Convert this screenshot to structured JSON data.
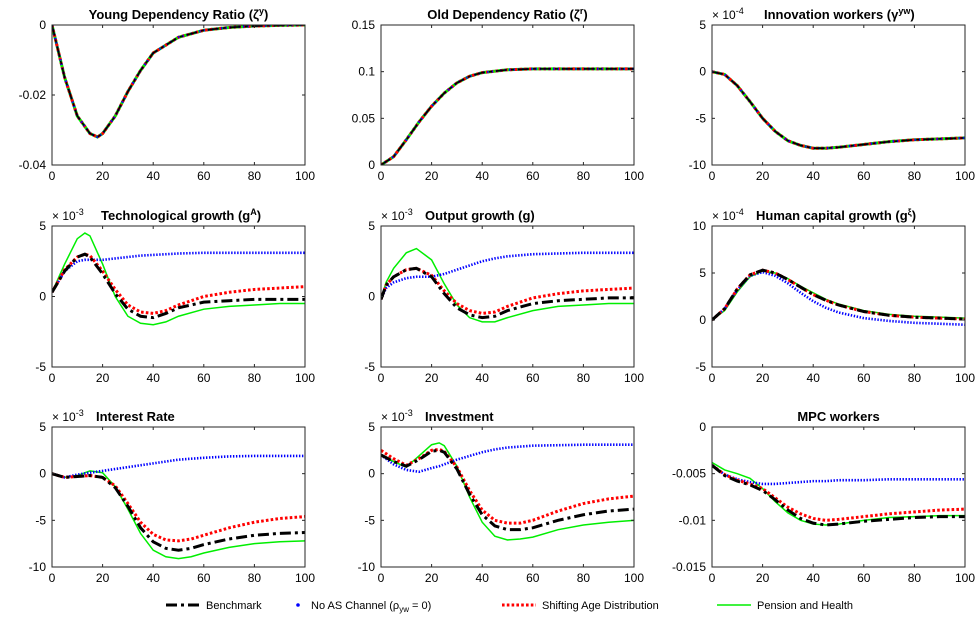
{
  "legend": {
    "items": [
      {
        "key": "bench",
        "label": "Benchmark",
        "color": "#000000",
        "style": "dashdot"
      },
      {
        "key": "noas",
        "label": "No AS Channel (ρ",
        "sub": "yw",
        "suffix": " =  0)",
        "color": "#0000ff",
        "style": "dots"
      },
      {
        "key": "shift",
        "label": "Shifting Age Distribution",
        "color": "#ff0000",
        "style": "dotted"
      },
      {
        "key": "pens",
        "label": "Pension and Health",
        "color": "#00ee00",
        "style": "solid"
      }
    ]
  },
  "chart_data": [
    {
      "type": "line",
      "title": "Young Dependency Ratio (ζ",
      "title_sup": "y",
      "title_end": ")",
      "exponent": "",
      "xlim": [
        0,
        100
      ],
      "ylim": [
        -0.04,
        0
      ],
      "yticks": [
        -0.04,
        -0.02,
        0
      ],
      "ytick_labels": [
        "-0.04",
        "-0.02",
        "0"
      ],
      "xticks": [
        0,
        20,
        40,
        60,
        80,
        100
      ],
      "x": [
        0,
        5,
        10,
        15,
        18,
        20,
        25,
        30,
        35,
        40,
        50,
        60,
        70,
        80,
        90,
        100
      ],
      "series": [
        {
          "key": "all",
          "values": [
            0,
            -0.015,
            -0.026,
            -0.031,
            -0.032,
            -0.031,
            -0.026,
            -0.019,
            -0.013,
            -0.008,
            -0.0035,
            -0.0015,
            -0.0007,
            -0.0003,
            -0.0001,
            0
          ]
        }
      ]
    },
    {
      "type": "line",
      "title": "Old Dependency Ratio (ζ",
      "title_sup": "r",
      "title_end": ")",
      "exponent": "",
      "xlim": [
        0,
        100
      ],
      "ylim": [
        0,
        0.15
      ],
      "yticks": [
        0,
        0.05,
        0.1,
        0.15
      ],
      "ytick_labels": [
        "0",
        "0.05",
        "0.1",
        "0.15"
      ],
      "xticks": [
        0,
        20,
        40,
        60,
        80,
        100
      ],
      "x": [
        0,
        5,
        10,
        15,
        20,
        25,
        30,
        35,
        40,
        50,
        60,
        70,
        80,
        90,
        100
      ],
      "series": [
        {
          "key": "all",
          "values": [
            0,
            0.009,
            0.027,
            0.046,
            0.063,
            0.077,
            0.088,
            0.095,
            0.099,
            0.102,
            0.103,
            0.103,
            0.103,
            0.103,
            0.103
          ]
        }
      ]
    },
    {
      "type": "line",
      "title": "Innovation workers (γ",
      "title_sup": "yw",
      "title_end": ")",
      "exponent": "-4",
      "xlim": [
        0,
        100
      ],
      "ylim": [
        -10,
        5
      ],
      "yticks": [
        -10,
        -5,
        0,
        5
      ],
      "ytick_labels": [
        "-10",
        "-5",
        "0",
        "5"
      ],
      "xticks": [
        0,
        20,
        40,
        60,
        80,
        100
      ],
      "x": [
        0,
        5,
        10,
        15,
        20,
        25,
        30,
        35,
        40,
        45,
        50,
        60,
        70,
        80,
        90,
        100
      ],
      "series": [
        {
          "key": "all",
          "values": [
            0,
            -0.3,
            -1.5,
            -3.2,
            -5,
            -6.4,
            -7.4,
            -7.9,
            -8.2,
            -8.2,
            -8.1,
            -7.8,
            -7.5,
            -7.3,
            -7.2,
            -7.1
          ]
        }
      ]
    },
    {
      "type": "line",
      "title": "Technological growth (g",
      "title_sup": "A",
      "title_end": ")",
      "exponent": "-3",
      "xlim": [
        0,
        100
      ],
      "ylim": [
        -5,
        5
      ],
      "yticks": [
        -5,
        0,
        5
      ],
      "ytick_labels": [
        "-5",
        "0",
        "5"
      ],
      "xticks": [
        0,
        20,
        40,
        60,
        80,
        100
      ],
      "x": [
        0,
        5,
        10,
        13,
        15,
        20,
        25,
        30,
        35,
        40,
        45,
        50,
        60,
        70,
        80,
        90,
        100
      ],
      "series": [
        {
          "key": "bench",
          "values": [
            0.3,
            1.8,
            2.8,
            3.0,
            2.8,
            1.6,
            0.2,
            -0.9,
            -1.4,
            -1.5,
            -1.2,
            -0.8,
            -0.4,
            -0.3,
            -0.2,
            -0.2,
            -0.2
          ]
        },
        {
          "key": "noas",
          "values": [
            0.3,
            1.8,
            2.5,
            2.6,
            2.6,
            2.6,
            2.7,
            2.8,
            2.9,
            2.95,
            3.0,
            3.05,
            3.1,
            3.1,
            3.1,
            3.1,
            3.1
          ]
        },
        {
          "key": "shift",
          "values": [
            0.3,
            1.9,
            2.8,
            3.0,
            2.9,
            1.8,
            0.5,
            -0.6,
            -1.1,
            -1.2,
            -1.0,
            -0.6,
            0,
            0.3,
            0.5,
            0.6,
            0.7
          ]
        },
        {
          "key": "pens",
          "values": [
            0.3,
            2.3,
            4.1,
            4.5,
            4.3,
            2.3,
            0.0,
            -1.4,
            -1.9,
            -2.0,
            -1.8,
            -1.4,
            -0.9,
            -0.7,
            -0.6,
            -0.5,
            -0.5
          ]
        }
      ]
    },
    {
      "type": "line",
      "title": "Output growth (g)",
      "title_sup": "",
      "title_end": "",
      "exponent": "-3",
      "xlim": [
        0,
        100
      ],
      "ylim": [
        -5,
        5
      ],
      "yticks": [
        -5,
        0,
        5
      ],
      "ytick_labels": [
        "-5",
        "0",
        "5"
      ],
      "xticks": [
        0,
        20,
        40,
        60,
        80,
        100
      ],
      "x": [
        0,
        2,
        5,
        10,
        14,
        20,
        25,
        30,
        35,
        40,
        45,
        50,
        60,
        70,
        80,
        90,
        100
      ],
      "series": [
        {
          "key": "bench",
          "values": [
            -0.2,
            0.8,
            1.4,
            1.9,
            2.0,
            1.4,
            0.2,
            -0.8,
            -1.3,
            -1.5,
            -1.4,
            -1.0,
            -0.5,
            -0.3,
            -0.2,
            -0.1,
            -0.1
          ]
        },
        {
          "key": "noas",
          "values": [
            -0.2,
            0.6,
            1.0,
            1.3,
            1.4,
            1.4,
            1.6,
            1.9,
            2.2,
            2.5,
            2.7,
            2.85,
            3.0,
            3.05,
            3.1,
            3.1,
            3.1
          ]
        },
        {
          "key": "shift",
          "values": [
            -0.2,
            0.8,
            1.4,
            1.9,
            2.0,
            1.5,
            0.4,
            -0.5,
            -1.0,
            -1.2,
            -1.1,
            -0.7,
            -0.1,
            0.2,
            0.4,
            0.5,
            0.6
          ]
        },
        {
          "key": "pens",
          "values": [
            -0.2,
            1.0,
            2.0,
            3.1,
            3.4,
            2.6,
            0.9,
            -0.6,
            -1.5,
            -1.8,
            -1.8,
            -1.5,
            -1.0,
            -0.7,
            -0.6,
            -0.5,
            -0.5
          ]
        }
      ]
    },
    {
      "type": "line",
      "title": "Human capital growth (g",
      "title_sup": "ξ",
      "title_end": ")",
      "exponent": "-4",
      "xlim": [
        0,
        100
      ],
      "ylim": [
        -5,
        10
      ],
      "yticks": [
        -5,
        0,
        5,
        10
      ],
      "ytick_labels": [
        "-5",
        "0",
        "5",
        "10"
      ],
      "xticks": [
        0,
        20,
        40,
        60,
        80,
        100
      ],
      "x": [
        0,
        5,
        10,
        15,
        20,
        25,
        30,
        35,
        40,
        45,
        50,
        60,
        70,
        80,
        90,
        100
      ],
      "series": [
        {
          "key": "bench",
          "values": [
            0,
            1.2,
            3.3,
            4.8,
            5.3,
            5.0,
            4.3,
            3.5,
            2.7,
            2.1,
            1.6,
            0.9,
            0.5,
            0.3,
            0.2,
            0.1
          ]
        },
        {
          "key": "noas",
          "values": [
            0,
            1.2,
            3.2,
            4.7,
            5.1,
            4.7,
            3.9,
            2.9,
            2.0,
            1.3,
            0.8,
            0.2,
            -0.1,
            -0.3,
            -0.4,
            -0.5
          ]
        },
        {
          "key": "shift",
          "values": [
            0,
            1.2,
            3.3,
            4.8,
            5.3,
            5.0,
            4.3,
            3.5,
            2.7,
            2.1,
            1.6,
            0.9,
            0.5,
            0.3,
            0.2,
            0.1
          ]
        },
        {
          "key": "pens",
          "values": [
            0,
            1.0,
            3.0,
            4.6,
            5.2,
            5.0,
            4.4,
            3.6,
            2.9,
            2.2,
            1.7,
            1.0,
            0.6,
            0.4,
            0.3,
            0.2
          ]
        }
      ]
    },
    {
      "type": "line",
      "title": "Interest Rate",
      "title_sup": "",
      "title_end": "",
      "exponent": "-3",
      "xlim": [
        0,
        100
      ],
      "ylim": [
        -10,
        5
      ],
      "yticks": [
        -10,
        -5,
        0,
        5
      ],
      "ytick_labels": [
        "-10",
        "-5",
        "0",
        "5"
      ],
      "xticks": [
        0,
        20,
        40,
        60,
        80,
        100
      ],
      "x": [
        0,
        5,
        10,
        15,
        20,
        25,
        30,
        35,
        40,
        45,
        50,
        55,
        60,
        70,
        80,
        90,
        100
      ],
      "series": [
        {
          "key": "bench",
          "values": [
            0,
            -0.4,
            -0.3,
            -0.2,
            -0.4,
            -1.5,
            -3.5,
            -5.8,
            -7.3,
            -8.0,
            -8.2,
            -8.0,
            -7.6,
            -7.0,
            -6.6,
            -6.4,
            -6.3
          ]
        },
        {
          "key": "noas",
          "values": [
            0,
            -0.4,
            -0.1,
            0.1,
            0.3,
            0.5,
            0.7,
            0.9,
            1.1,
            1.3,
            1.5,
            1.6,
            1.7,
            1.85,
            1.9,
            1.9,
            1.9
          ]
        },
        {
          "key": "shift",
          "values": [
            0,
            -0.4,
            -0.3,
            -0.2,
            -0.4,
            -1.3,
            -3.2,
            -5.2,
            -6.5,
            -7.1,
            -7.2,
            -7.0,
            -6.6,
            -5.8,
            -5.2,
            -4.8,
            -4.6
          ]
        },
        {
          "key": "pens",
          "values": [
            0,
            -0.4,
            -0.2,
            0.3,
            0.1,
            -1.4,
            -3.8,
            -6.4,
            -8.2,
            -8.9,
            -9.1,
            -8.9,
            -8.5,
            -7.9,
            -7.5,
            -7.3,
            -7.2
          ]
        }
      ]
    },
    {
      "type": "line",
      "title": "Investment",
      "title_sup": "",
      "title_end": "",
      "exponent": "-3",
      "xlim": [
        0,
        100
      ],
      "ylim": [
        -10,
        5
      ],
      "yticks": [
        -10,
        -5,
        0,
        5
      ],
      "ytick_labels": [
        "-10",
        "-5",
        "0",
        "5"
      ],
      "xticks": [
        0,
        20,
        40,
        60,
        80,
        100
      ],
      "x": [
        0,
        5,
        10,
        15,
        20,
        23,
        25,
        30,
        35,
        40,
        45,
        50,
        55,
        60,
        70,
        80,
        90,
        100
      ],
      "series": [
        {
          "key": "bench",
          "values": [
            2.0,
            1.3,
            0.8,
            1.5,
            2.4,
            2.5,
            2.3,
            0.5,
            -2.2,
            -4.4,
            -5.6,
            -6.0,
            -6.0,
            -5.8,
            -5.0,
            -4.4,
            -4.0,
            -3.8
          ]
        },
        {
          "key": "noas",
          "values": [
            2.0,
            1.0,
            0.4,
            0.2,
            0.6,
            0.8,
            1.0,
            1.5,
            1.9,
            2.3,
            2.6,
            2.8,
            2.9,
            3.0,
            3.05,
            3.1,
            3.1,
            3.1
          ]
        },
        {
          "key": "shift",
          "values": [
            2.5,
            1.6,
            0.9,
            1.6,
            2.5,
            2.6,
            2.4,
            0.7,
            -1.8,
            -3.9,
            -5.0,
            -5.3,
            -5.3,
            -5.0,
            -4.0,
            -3.2,
            -2.7,
            -2.4
          ]
        },
        {
          "key": "pens",
          "values": [
            2.0,
            1.3,
            0.7,
            1.9,
            3.1,
            3.3,
            3.0,
            0.8,
            -2.5,
            -5.2,
            -6.7,
            -7.1,
            -7.0,
            -6.8,
            -6.0,
            -5.5,
            -5.2,
            -5.0
          ]
        }
      ]
    },
    {
      "type": "line",
      "title": "MPC workers",
      "title_sup": "",
      "title_end": "",
      "exponent": "",
      "xlim": [
        0,
        100
      ],
      "ylim": [
        -0.015,
        0
      ],
      "yticks": [
        -0.015,
        -0.01,
        -0.005,
        0
      ],
      "ytick_labels": [
        "-0.015",
        "-0.01",
        "-0.005",
        "0"
      ],
      "xticks": [
        0,
        20,
        40,
        60,
        80,
        100
      ],
      "x": [
        0,
        5,
        10,
        15,
        20,
        25,
        30,
        35,
        40,
        45,
        50,
        60,
        70,
        80,
        90,
        100
      ],
      "series": [
        {
          "key": "bench",
          "values": [
            -0.0041,
            -0.0052,
            -0.0058,
            -0.0062,
            -0.0068,
            -0.0078,
            -0.0089,
            -0.0098,
            -0.0103,
            -0.0105,
            -0.0104,
            -0.0101,
            -0.0099,
            -0.0097,
            -0.0096,
            -0.0096
          ]
        },
        {
          "key": "noas",
          "values": [
            -0.0041,
            -0.0051,
            -0.0056,
            -0.0059,
            -0.0061,
            -0.0061,
            -0.006,
            -0.0059,
            -0.0058,
            -0.0058,
            -0.0057,
            -0.0057,
            -0.0056,
            -0.0056,
            -0.0056,
            -0.0056
          ]
        },
        {
          "key": "shift",
          "values": [
            -0.0041,
            -0.0051,
            -0.0057,
            -0.0061,
            -0.0066,
            -0.0076,
            -0.0086,
            -0.0093,
            -0.0098,
            -0.01,
            -0.0099,
            -0.0096,
            -0.0093,
            -0.0091,
            -0.0089,
            -0.0088
          ]
        },
        {
          "key": "pens",
          "values": [
            -0.0038,
            -0.0046,
            -0.005,
            -0.0055,
            -0.0066,
            -0.008,
            -0.0092,
            -0.01,
            -0.0104,
            -0.0105,
            -0.0104,
            -0.01,
            -0.0097,
            -0.0096,
            -0.0095,
            -0.0095
          ]
        }
      ]
    }
  ]
}
